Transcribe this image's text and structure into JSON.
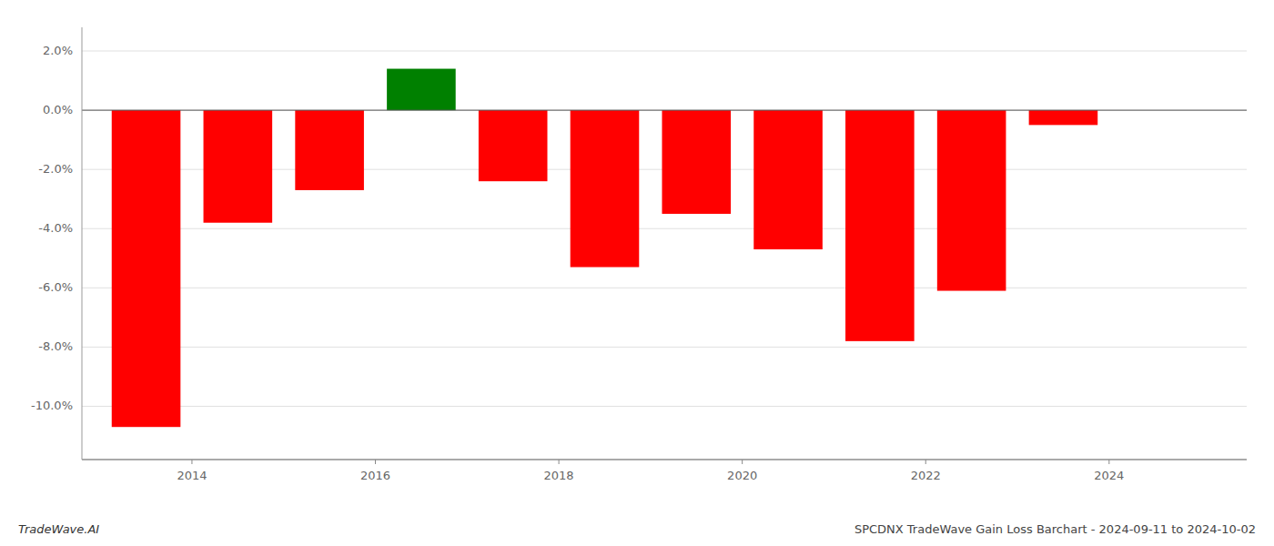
{
  "chart_data": {
    "type": "bar",
    "title": "SPCDNX TradeWave Gain Loss Barchart - 2024-09-11 to 2024-10-02",
    "annotations": [
      "TradeWave.AI"
    ],
    "x": [
      2013.5,
      2014.5,
      2015.5,
      2016.5,
      2017.5,
      2018.5,
      2019.5,
      2020.5,
      2021.5,
      2022.5,
      2023.5,
      2024.5
    ],
    "values": [
      -10.7,
      -3.8,
      -2.7,
      1.4,
      -2.4,
      -5.3,
      -3.5,
      -4.7,
      -7.8,
      -6.1,
      -0.5,
      0.0
    ],
    "colors": [
      "red",
      "red",
      "red",
      "green",
      "red",
      "red",
      "red",
      "red",
      "red",
      "red",
      "red",
      "red"
    ],
    "xlim": [
      2012.8,
      2025.5
    ],
    "xticks": [
      2014,
      2016,
      2018,
      2020,
      2022,
      2024
    ],
    "ylim": [
      -11.8,
      2.8
    ],
    "yticks": [
      {
        "value": 2.0,
        "label": "2.0%"
      },
      {
        "value": 0.0,
        "label": "0.0%"
      },
      {
        "value": -2.0,
        "label": "-2.0%"
      },
      {
        "value": -4.0,
        "label": "-4.0%"
      },
      {
        "value": -6.0,
        "label": "-6.0%"
      },
      {
        "value": -8.0,
        "label": "-8.0%"
      },
      {
        "value": -10.0,
        "label": "-10.0%"
      }
    ],
    "grid": true
  }
}
